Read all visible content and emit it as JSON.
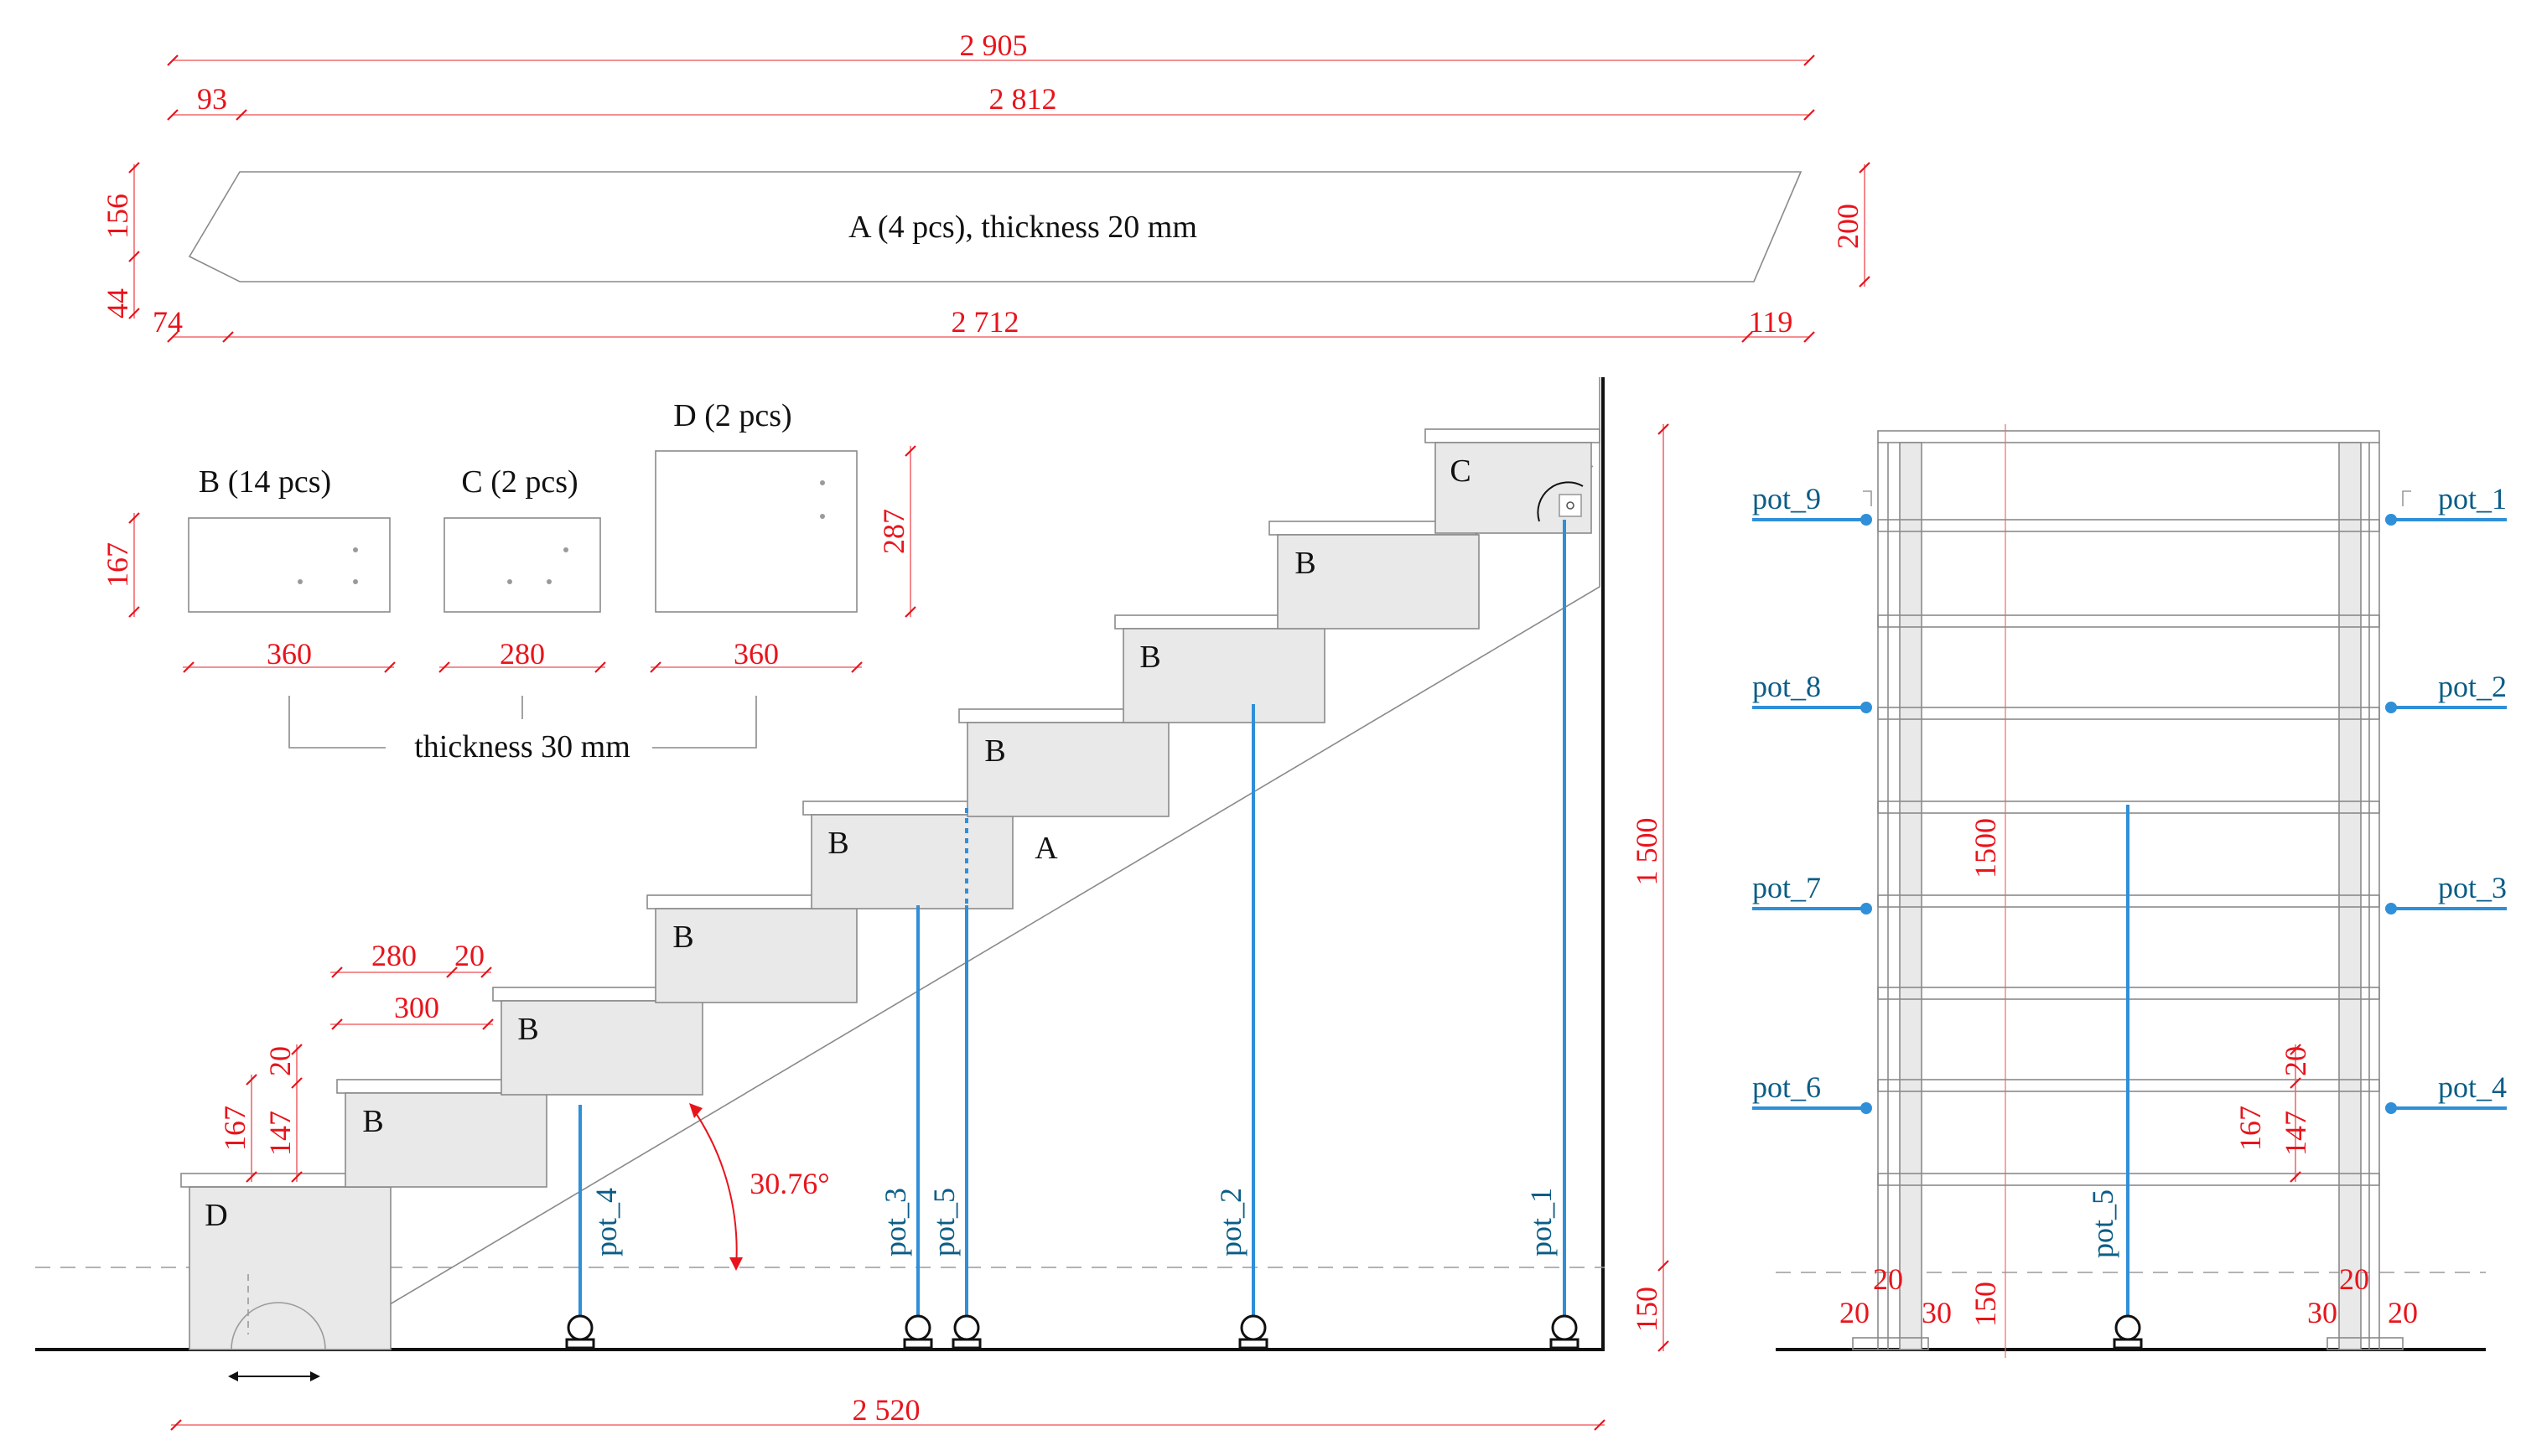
{
  "top_dims": {
    "total": "2 905",
    "offset": "93",
    "main": "2 812",
    "left_h_top": "156",
    "left_h_bottom": "44",
    "right_h": "200",
    "bottom_left": "74",
    "bottom_main": "2 712",
    "bottom_right": "119"
  },
  "part_a_label": "A (4 pcs), thickness 20 mm",
  "parts": {
    "b_label": "B (14 pcs)",
    "c_label": "C (2 pcs)",
    "d_label": "D (2 pcs)",
    "b_height": "167",
    "d_height": "287",
    "b_width": "360",
    "c_width": "280",
    "d_width": "360",
    "thickness_note": "thickness 30 mm"
  },
  "side_view": {
    "step_labels": [
      "B",
      "B",
      "B",
      "B",
      "B",
      "B",
      "B",
      "C",
      "D",
      "A"
    ],
    "dim_280": "280",
    "dim_20_top": "20",
    "dim_300": "300",
    "dim_167": "167",
    "dim_147": "147",
    "dim_20_side": "20",
    "angle": "30.76°",
    "height_1500": "1 500",
    "height_150": "150",
    "width_2520": "2 520",
    "pots": [
      "pot_4",
      "pot_3",
      "pot_5",
      "pot_2",
      "pot_1"
    ]
  },
  "front_view": {
    "pots_left": [
      "pot_9",
      "pot_8",
      "pot_7",
      "pot_6"
    ],
    "pots_right": [
      "pot_1",
      "pot_2",
      "pot_3",
      "pot_4"
    ],
    "pot_center": "pot_5",
    "height_1500": "1500",
    "height_150": "150",
    "dim_20": "20",
    "dim_167": "167",
    "dim_147": "147",
    "bottom_left_20a": "20",
    "bottom_left_20b": "20",
    "bottom_left_30": "30",
    "bottom_right_20a": "20",
    "bottom_right_30": "30",
    "bottom_right_20b": "20"
  }
}
